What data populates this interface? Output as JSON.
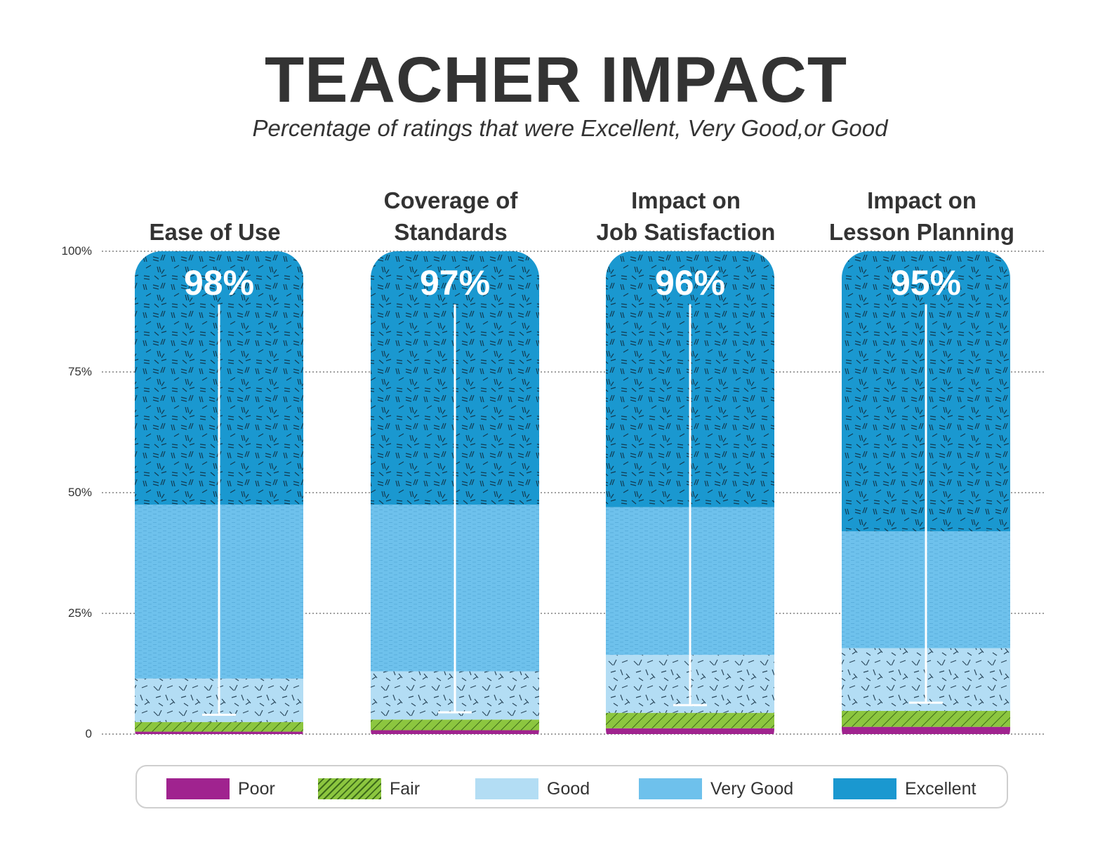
{
  "title": "TEACHER IMPACT",
  "subtitle": "Percentage of ratings that were Excellent, Very Good,or Good",
  "chart_data": {
    "type": "bar",
    "stacked": true,
    "title": "TEACHER IMPACT",
    "subtitle": "Percentage of ratings that were Excellent, Very Good,or Good",
    "categories": [
      "Ease of Use",
      "Coverage of Standards",
      "Impact on Job Satisfaction",
      "Impact on Lesson Planning"
    ],
    "category_label_lines": [
      [
        "Ease of Use"
      ],
      [
        "Coverage of",
        "Standards"
      ],
      [
        "Impact on",
        "Job Satisfaction"
      ],
      [
        "Impact on",
        "Lesson Planning"
      ]
    ],
    "top_labels": [
      "98%",
      "97%",
      "96%",
      "95%"
    ],
    "ylim": [
      0,
      100
    ],
    "yticks": [
      0,
      25,
      50,
      75,
      100
    ],
    "ytick_labels": [
      "0",
      "25%",
      "50%",
      "75%",
      "100%"
    ],
    "grid": true,
    "legend_position": "bottom",
    "series": [
      {
        "name": "Poor",
        "color": "#a0238f",
        "values": [
          0.5,
          0.8,
          1.2,
          1.5
        ]
      },
      {
        "name": "Fair",
        "color": "#8cc63f",
        "values": [
          2.0,
          2.2,
          3.2,
          3.3
        ]
      },
      {
        "name": "Good",
        "color": "#b3ddf4",
        "values": [
          9.0,
          10.0,
          12.0,
          13.0
        ]
      },
      {
        "name": "Very Good",
        "color": "#6ec1ec",
        "values": [
          36.0,
          34.5,
          30.6,
          24.2
        ]
      },
      {
        "name": "Excellent",
        "color": "#1a98d0",
        "values": [
          52.5,
          52.5,
          53.0,
          58.0
        ]
      }
    ],
    "range_markers": [
      {
        "low": 4,
        "high": 89
      },
      {
        "low": 4.5,
        "high": 89
      },
      {
        "low": 6,
        "high": 89
      },
      {
        "low": 6.5,
        "high": 89
      }
    ]
  }
}
